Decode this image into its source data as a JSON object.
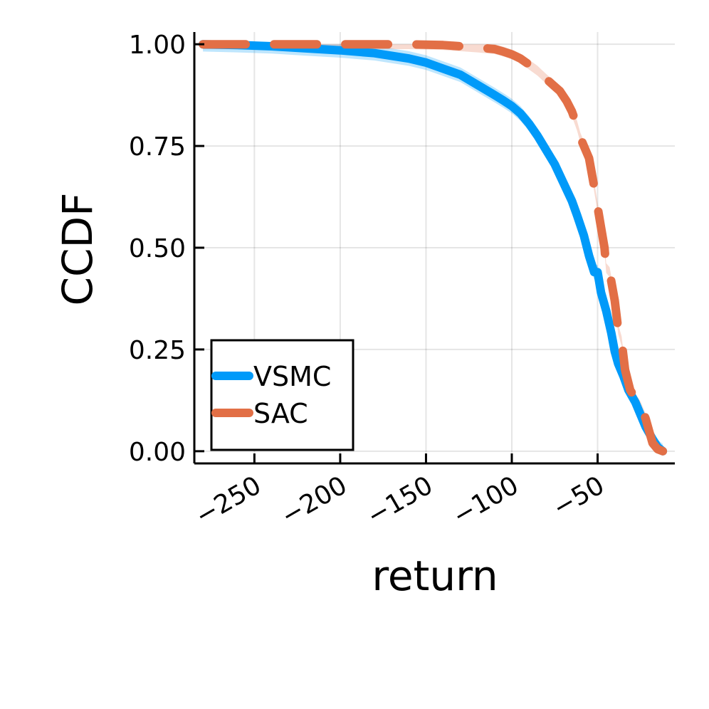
{
  "chart_data": {
    "type": "line",
    "title": "",
    "xlabel": "return",
    "ylabel": "CCDF",
    "xlim": [
      -285,
      -5
    ],
    "ylim": [
      -0.03,
      1.03
    ],
    "x_ticks": [
      -250,
      -200,
      -150,
      -100,
      -50
    ],
    "x_tick_labels": [
      "−250",
      "−200",
      "−150",
      "−100",
      "−50"
    ],
    "y_ticks": [
      0,
      0.25,
      0.5,
      0.75,
      1
    ],
    "y_tick_labels": [
      "0.00",
      "0.25",
      "0.50",
      "0.75",
      "1.00"
    ],
    "grid": true,
    "legend_position": "bottom-left",
    "series": [
      {
        "name": "VSMC",
        "color": "#009af9",
        "band_color": "#009af9",
        "style": "solid",
        "x": [
          -280,
          -260,
          -240,
          -220,
          -200,
          -180,
          -160,
          -150,
          -140,
          -130,
          -120,
          -110,
          -105,
          -100,
          -95,
          -90,
          -85,
          -80,
          -75,
          -70,
          -65,
          -62,
          -58,
          -55,
          -52,
          -50,
          -48,
          -45,
          -42,
          -40,
          -38,
          -35,
          -32,
          -28,
          -25,
          -22,
          -18,
          -15,
          -12
        ],
        "y": [
          1.0,
          0.998,
          0.995,
          0.99,
          0.985,
          0.978,
          0.965,
          0.955,
          0.94,
          0.925,
          0.9,
          0.875,
          0.862,
          0.848,
          0.83,
          0.805,
          0.775,
          0.74,
          0.705,
          0.66,
          0.615,
          0.58,
          0.53,
          0.48,
          0.44,
          0.44,
          0.39,
          0.345,
          0.29,
          0.245,
          0.215,
          0.185,
          0.15,
          0.12,
          0.09,
          0.06,
          0.03,
          0.01,
          0.0
        ],
        "band_halfwidth": 0.018
      },
      {
        "name": "SAC",
        "color": "#e26f46",
        "band_color": "#e26f46",
        "style": "dashed",
        "x": [
          -280,
          -260,
          -240,
          -220,
          -200,
          -180,
          -160,
          -140,
          -130,
          -120,
          -110,
          -105,
          -100,
          -95,
          -90,
          -85,
          -80,
          -76,
          -72,
          -68,
          -65,
          -62,
          -60,
          -58,
          -55,
          -52,
          -50,
          -48,
          -46,
          -45,
          -43,
          -40,
          -38,
          -36,
          -34,
          -31,
          -28,
          -25,
          -22,
          -20,
          -18,
          -15,
          -12
        ],
        "y": [
          1.0,
          1.0,
          1.0,
          1.0,
          1.0,
          1.0,
          1.0,
          0.998,
          0.995,
          0.992,
          0.988,
          0.982,
          0.975,
          0.965,
          0.95,
          0.935,
          0.915,
          0.9,
          0.885,
          0.86,
          0.835,
          0.8,
          0.77,
          0.75,
          0.72,
          0.65,
          0.6,
          0.55,
          0.5,
          0.45,
          0.44,
          0.37,
          0.3,
          0.27,
          0.2,
          0.15,
          0.13,
          0.11,
          0.08,
          0.05,
          0.02,
          0.005,
          0.0
        ],
        "band_halfwidth": 0.012
      }
    ]
  }
}
